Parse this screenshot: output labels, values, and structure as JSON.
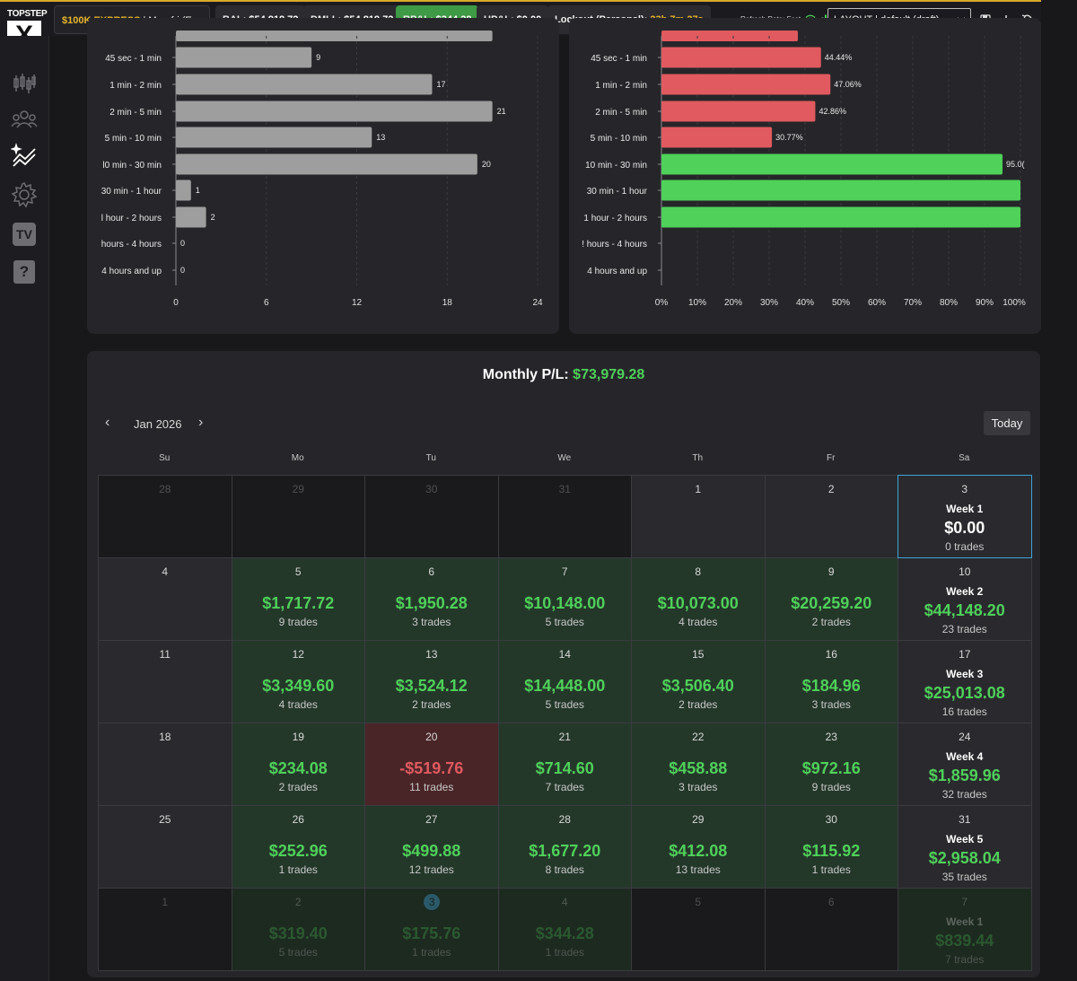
{
  "brand": {
    "top": "TOPSTEP",
    "mark": "X"
  },
  "topbar": {
    "account_label": "$100K EXPRESS",
    "account_sub": "| Mon-fri (E...",
    "bal_label": "BAL:",
    "bal_value": "$54,818.72",
    "dmll_label": "DMLL:",
    "dmll_value": "$54,818.72",
    "rpl_label": "RP&L:",
    "rpl_value": "$344.28",
    "upl_label": "UP&L:",
    "upl_value": "$0.00",
    "lockout_label": "Lockout (Personal):",
    "lockout_value": "23h 7m 27s",
    "refresh_label": "Refresh Rate: Fast",
    "layout_value": "LAYOUT | default (draft)"
  },
  "sidebar": {
    "icons": [
      "candlestick-icon",
      "users-icon",
      "analytics-icon",
      "settings-icon",
      "tv-icon",
      "help-icon"
    ],
    "tv_label": "TV",
    "help_label": "?"
  },
  "chart_data": [
    {
      "type": "bar",
      "orientation": "horizontal",
      "categories": [
        "45 sec - 1 min",
        "1 min - 2 min",
        "2 min - 5 min",
        "5 min - 10 min",
        "10 min - 30 min",
        "30 min - 1 hour",
        "1 hour - 2 hours",
        "2 hours - 4 hours",
        "4 hours and up"
      ],
      "category_labels": [
        "45 sec - 1 min",
        "1 min - 2 min",
        "2 min - 5 min",
        "5 min - 10 min",
        "l0 min - 30 min",
        "30 min - 1 hour",
        "l hour - 2 hours",
        "hours - 4 hours",
        "4 hours and up"
      ],
      "values": [
        9,
        17,
        21,
        13,
        20,
        1,
        2,
        0,
        0
      ],
      "top_partial_value": 21,
      "xlim": [
        0,
        24
      ],
      "xticks": [
        "0",
        "6",
        "12",
        "18",
        "24"
      ],
      "color": "#9e9e9e"
    },
    {
      "type": "bar",
      "orientation": "horizontal",
      "categories": [
        "45 sec - 1 min",
        "1 min - 2 min",
        "2 min - 5 min",
        "5 min - 10 min",
        "10 min - 30 min",
        "30 min - 1 hour",
        "1 hour - 2 hours",
        "2 hours - 4 hours",
        "4 hours and up"
      ],
      "category_labels": [
        "45 sec - 1 min",
        "1 min - 2 min",
        "2 min - 5 min",
        "5 min - 10 min",
        "10 min - 30 min",
        "30 min - 1 hour",
        "1 hour - 2 hours",
        "! hours - 4 hours",
        "4 hours and up"
      ],
      "values": [
        44.44,
        47.06,
        42.86,
        30.77,
        95.0,
        100,
        100,
        0,
        0
      ],
      "value_labels": [
        "44.44%",
        "47.06%",
        "42.86%",
        "30.77%",
        "95.0(",
        "",
        "",
        "",
        ""
      ],
      "colors": [
        "#e05a5f",
        "#e05a5f",
        "#e05a5f",
        "#e05a5f",
        "#4fd15a",
        "#4fd15a",
        "#4fd15a",
        "#4fd15a",
        "#4fd15a"
      ],
      "top_partial_value": 38,
      "xlim": [
        0,
        100
      ],
      "xticks": [
        "0%",
        "10%",
        "20%",
        "30%",
        "40%",
        "50%",
        "60%",
        "70%",
        "80%",
        "90%",
        "100%"
      ]
    }
  ],
  "calendar": {
    "title_label": "Monthly P/L:",
    "title_value": "$73,979.28",
    "month": "Jan 2026",
    "today_label": "Today",
    "prev_label": "‹",
    "next_label": "›",
    "weekdays": [
      "Su",
      "Mo",
      "Tu",
      "We",
      "Th",
      "Fr",
      "Sa"
    ],
    "weeks": [
      {
        "days": [
          {
            "day": "28",
            "outside": true
          },
          {
            "day": "29",
            "outside": true
          },
          {
            "day": "30",
            "outside": true
          },
          {
            "day": "31",
            "outside": true
          },
          {
            "day": "1"
          },
          {
            "day": "2"
          }
        ],
        "sat": {
          "day": "3",
          "week": "Week 1",
          "amount": "$0.00",
          "trades": "0 trades",
          "tone": "neutral",
          "selected": true
        }
      },
      {
        "days": [
          {
            "day": "4"
          },
          {
            "day": "5",
            "amount": "$1,717.72",
            "trades": "9 trades",
            "tone": "pos"
          },
          {
            "day": "6",
            "amount": "$1,950.28",
            "trades": "3 trades",
            "tone": "pos"
          },
          {
            "day": "7",
            "amount": "$10,148.00",
            "trades": "5 trades",
            "tone": "pos"
          },
          {
            "day": "8",
            "amount": "$10,073.00",
            "trades": "4 trades",
            "tone": "pos"
          },
          {
            "day": "9",
            "amount": "$20,259.20",
            "trades": "2 trades",
            "tone": "pos"
          }
        ],
        "sat": {
          "day": "10",
          "week": "Week 2",
          "amount": "$44,148.20",
          "trades": "23 trades",
          "tone": "pos"
        }
      },
      {
        "days": [
          {
            "day": "11"
          },
          {
            "day": "12",
            "amount": "$3,349.60",
            "trades": "4 trades",
            "tone": "pos"
          },
          {
            "day": "13",
            "amount": "$3,524.12",
            "trades": "2 trades",
            "tone": "pos"
          },
          {
            "day": "14",
            "amount": "$14,448.00",
            "trades": "5 trades",
            "tone": "pos"
          },
          {
            "day": "15",
            "amount": "$3,506.40",
            "trades": "2 trades",
            "tone": "pos"
          },
          {
            "day": "16",
            "amount": "$184.96",
            "trades": "3 trades",
            "tone": "pos"
          }
        ],
        "sat": {
          "day": "17",
          "week": "Week 3",
          "amount": "$25,013.08",
          "trades": "16 trades",
          "tone": "pos"
        }
      },
      {
        "days": [
          {
            "day": "18"
          },
          {
            "day": "19",
            "amount": "$234.08",
            "trades": "2 trades",
            "tone": "pos"
          },
          {
            "day": "20",
            "amount": "-$519.76",
            "trades": "11 trades",
            "tone": "neg"
          },
          {
            "day": "21",
            "amount": "$714.60",
            "trades": "7 trades",
            "tone": "pos"
          },
          {
            "day": "22",
            "amount": "$458.88",
            "trades": "3 trades",
            "tone": "pos"
          },
          {
            "day": "23",
            "amount": "$972.16",
            "trades": "9 trades",
            "tone": "pos"
          }
        ],
        "sat": {
          "day": "24",
          "week": "Week 4",
          "amount": "$1,859.96",
          "trades": "32 trades",
          "tone": "pos"
        }
      },
      {
        "days": [
          {
            "day": "25"
          },
          {
            "day": "26",
            "amount": "$252.96",
            "trades": "1 trades",
            "tone": "pos"
          },
          {
            "day": "27",
            "amount": "$499.88",
            "trades": "12 trades",
            "tone": "pos"
          },
          {
            "day": "28",
            "amount": "$1,677.20",
            "trades": "8 trades",
            "tone": "pos"
          },
          {
            "day": "29",
            "amount": "$412.08",
            "trades": "13 trades",
            "tone": "pos"
          },
          {
            "day": "30",
            "amount": "$115.92",
            "trades": "1 trades",
            "tone": "pos"
          }
        ],
        "sat": {
          "day": "31",
          "week": "Week 5",
          "amount": "$2,958.04",
          "trades": "35 trades",
          "tone": "pos"
        }
      },
      {
        "days": [
          {
            "day": "1",
            "outside": true
          },
          {
            "day": "2",
            "amount": "$319.40",
            "trades": "5 trades",
            "tone": "pos",
            "outside": true
          },
          {
            "day": "3",
            "amount": "$175.76",
            "trades": "1 trades",
            "tone": "pos",
            "outside": true,
            "today": true
          },
          {
            "day": "4",
            "amount": "$344.28",
            "trades": "1 trades",
            "tone": "pos",
            "outside": true
          },
          {
            "day": "5",
            "outside": true
          },
          {
            "day": "6",
            "outside": true
          }
        ],
        "sat": {
          "day": "7",
          "week": "Week 1",
          "amount": "$839.44",
          "trades": "7 trades",
          "tone": "pos",
          "outside": true
        }
      }
    ]
  },
  "colors": {
    "accent": "#d9a928",
    "positive": "#4fd15a",
    "negative": "#e05a5f",
    "pos_bg": "#24382a",
    "neg_bg": "#4a2528"
  }
}
